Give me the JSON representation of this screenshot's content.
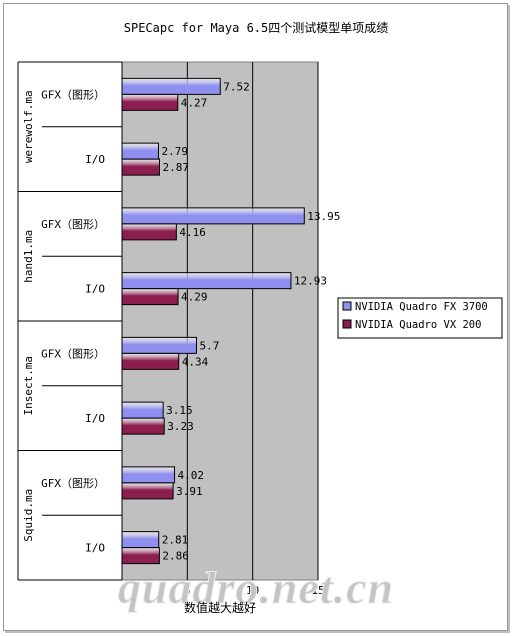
{
  "chart_data": {
    "type": "bar",
    "orientation": "horizontal",
    "title": "SPECapc for Maya 6.5四个测试模型单项成绩",
    "xlabel": "数值越大越好",
    "xlim": [
      0,
      15
    ],
    "xticks": [
      0,
      5,
      10,
      15
    ],
    "grid": true,
    "legend_position": "right",
    "groups": [
      {
        "name": "werewolf.ma",
        "categories": [
          "GFX（图形）",
          "I/O"
        ]
      },
      {
        "name": "hand1.ma",
        "categories": [
          "GFX（图形）",
          "I/O"
        ]
      },
      {
        "name": "Insect.ma",
        "categories": [
          "GFX（图形）",
          "I/O"
        ]
      },
      {
        "name": "Squid.ma",
        "categories": [
          "GFX（图形）",
          "I/O"
        ]
      }
    ],
    "series": [
      {
        "name": "NVIDIA Quadro FX 3700",
        "color": "#8f8fef",
        "values": [
          7.52,
          2.79,
          13.95,
          12.93,
          5.7,
          3.15,
          4.02,
          2.81
        ]
      },
      {
        "name": "NVIDIA Quadro VX 200",
        "color": "#8c1f4f",
        "values": [
          4.27,
          2.87,
          4.16,
          4.29,
          4.34,
          3.23,
          3.91,
          2.86
        ]
      }
    ],
    "value_labels": [
      [
        "7.52",
        "2.79",
        "13.95",
        "12.93",
        "5.7",
        "3.15",
        "4.02",
        "2.81"
      ],
      [
        "4.27",
        "2.87",
        "4.16",
        "4.29",
        "4.34",
        "3.23",
        "3.91",
        "2.86"
      ]
    ]
  },
  "watermark": "quadro.net.cn"
}
